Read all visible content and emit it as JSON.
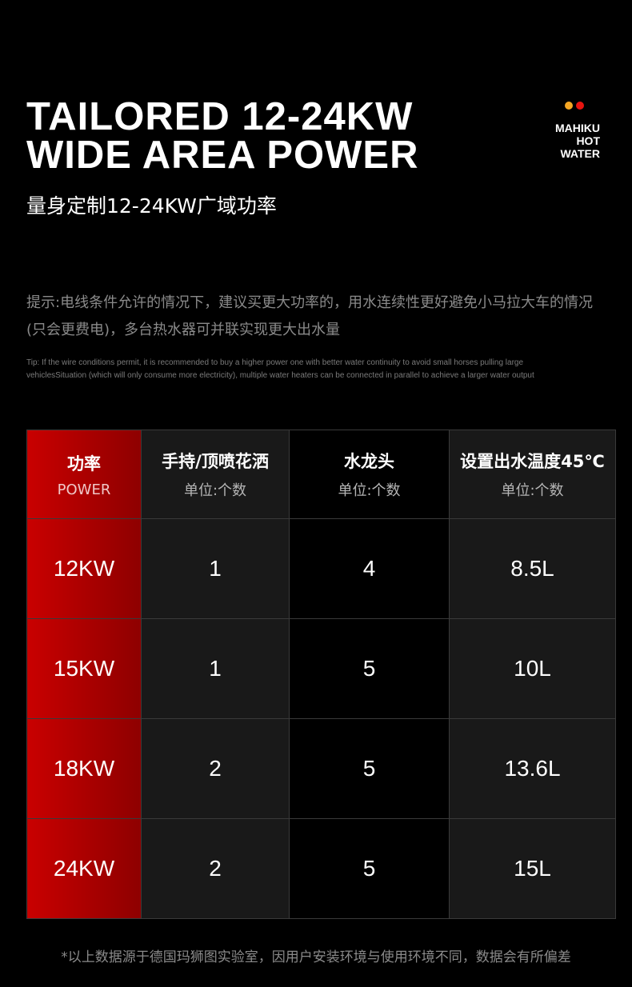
{
  "header": {
    "title_line1": "TAILORED 12-24KW",
    "title_line2": "WIDE AREA POWER",
    "subtitle": "量身定制12-24KW广域功率"
  },
  "logo": {
    "line1": "MAHIKU",
    "line2": "HOT",
    "line3": "WATER",
    "dot_colors": [
      "#f5a623",
      "#e8140f"
    ]
  },
  "tip": {
    "chinese": "提示:电线条件允许的情况下，建议买更大功率的，用水连续性更好避免小马拉大车的情况(只会更费电)，多台热水器可并联实现更大出水量",
    "english_line1": "Tip: If the wire conditions permit, it is recommended to buy a higher power one with better water continuity to avoid small horses pulling large",
    "english_line2": "vehiclesSituation (which will only consume more electricity), multiple water heaters can be connected  in parallel to achieve a larger water output"
  },
  "table": {
    "headers": [
      {
        "main": "功率",
        "sub": "POWER"
      },
      {
        "main": "手持/顶喷花洒",
        "sub": "单位:个数"
      },
      {
        "main": "水龙头",
        "sub": "单位:个数"
      },
      {
        "main": "设置出水温度45℃",
        "sub": "单位:个数"
      }
    ],
    "rows": [
      [
        "12KW",
        "1",
        "4",
        "8.5L"
      ],
      [
        "15KW",
        "1",
        "5",
        "10L"
      ],
      [
        "18KW",
        "2",
        "5",
        "13.6L"
      ],
      [
        "24KW",
        "2",
        "5",
        "15L"
      ]
    ],
    "accent_color": "#c90000"
  },
  "footer": "*以上数据源于德国玛狮图实验室，因用户安装环境与使用环境不同，数据会有所偏差"
}
